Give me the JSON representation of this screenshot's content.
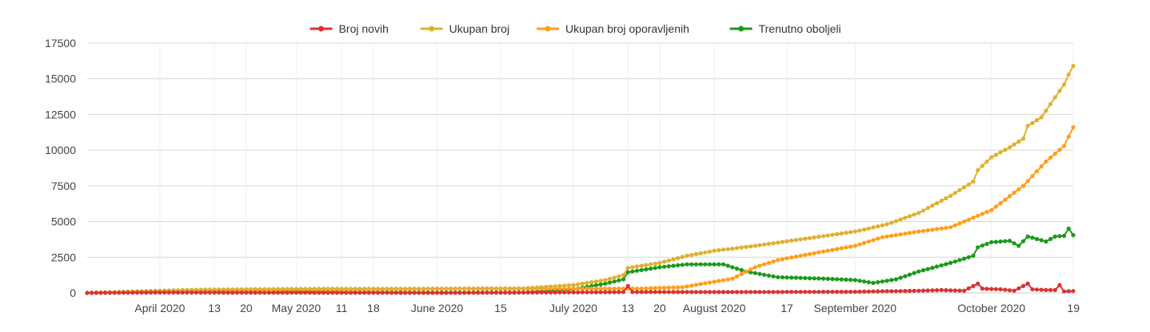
{
  "chart_data": {
    "type": "line",
    "title": "",
    "xlabel": "",
    "ylabel": "",
    "x_range": [
      "2020-03-16",
      "2020-10-19"
    ],
    "ylim": [
      0,
      17500
    ],
    "y_ticks": [
      0,
      2500,
      5000,
      7500,
      10000,
      12500,
      15000,
      17500
    ],
    "y_tick_labels": [
      "0",
      "2500",
      "5000",
      "7500",
      "10000",
      "12500",
      "15000",
      "17500"
    ],
    "x_ticks": [
      {
        "date": "2020-04-01",
        "label": "April 2020"
      },
      {
        "date": "2020-04-13",
        "label": "13"
      },
      {
        "date": "2020-04-20",
        "label": "20"
      },
      {
        "date": "2020-05-01",
        "label": "May 2020"
      },
      {
        "date": "2020-05-11",
        "label": "11"
      },
      {
        "date": "2020-05-18",
        "label": "18"
      },
      {
        "date": "2020-06-01",
        "label": "June 2020"
      },
      {
        "date": "2020-06-15",
        "label": "15"
      },
      {
        "date": "2020-07-01",
        "label": "July 2020"
      },
      {
        "date": "2020-07-13",
        "label": "13"
      },
      {
        "date": "2020-07-20",
        "label": "20"
      },
      {
        "date": "2020-08-01",
        "label": "August 2020"
      },
      {
        "date": "2020-08-17",
        "label": "17"
      },
      {
        "date": "2020-09-01",
        "label": "September 2020"
      },
      {
        "date": "2020-10-01",
        "label": "October 2020"
      },
      {
        "date": "2020-10-19",
        "label": "19"
      }
    ],
    "grid": true,
    "legend_position": "top-center",
    "series": [
      {
        "name": "Broj novih",
        "color": "#dc3232",
        "points": [
          [
            "2020-03-16",
            0
          ],
          [
            "2020-04-01",
            30
          ],
          [
            "2020-04-15",
            25
          ],
          [
            "2020-05-01",
            15
          ],
          [
            "2020-06-01",
            5
          ],
          [
            "2020-07-01",
            40
          ],
          [
            "2020-07-12",
            60
          ],
          [
            "2020-07-13",
            480
          ],
          [
            "2020-07-14",
            60
          ],
          [
            "2020-08-01",
            60
          ],
          [
            "2020-09-01",
            80
          ],
          [
            "2020-09-15",
            150
          ],
          [
            "2020-09-20",
            200
          ],
          [
            "2020-09-25",
            150
          ],
          [
            "2020-09-28",
            650
          ],
          [
            "2020-09-29",
            300
          ],
          [
            "2020-10-03",
            250
          ],
          [
            "2020-10-06",
            150
          ],
          [
            "2020-10-09",
            650
          ],
          [
            "2020-10-10",
            250
          ],
          [
            "2020-10-13",
            200
          ],
          [
            "2020-10-15",
            200
          ],
          [
            "2020-10-16",
            550
          ],
          [
            "2020-10-17",
            100
          ],
          [
            "2020-10-19",
            130
          ]
        ]
      },
      {
        "name": "Ukupan broj",
        "color": "#e0b030",
        "points": [
          [
            "2020-03-16",
            0
          ],
          [
            "2020-04-01",
            150
          ],
          [
            "2020-04-10",
            220
          ],
          [
            "2020-04-20",
            250
          ],
          [
            "2020-05-01",
            280
          ],
          [
            "2020-06-01",
            300
          ],
          [
            "2020-06-20",
            320
          ],
          [
            "2020-07-01",
            550
          ],
          [
            "2020-07-08",
            900
          ],
          [
            "2020-07-12",
            1250
          ],
          [
            "2020-07-13",
            1750
          ],
          [
            "2020-07-20",
            2100
          ],
          [
            "2020-07-26",
            2600
          ],
          [
            "2020-08-01",
            2950
          ],
          [
            "2020-08-10",
            3300
          ],
          [
            "2020-08-20",
            3750
          ],
          [
            "2020-09-01",
            4300
          ],
          [
            "2020-09-08",
            4800
          ],
          [
            "2020-09-15",
            5600
          ],
          [
            "2020-09-22",
            6800
          ],
          [
            "2020-09-27",
            7800
          ],
          [
            "2020-09-28",
            8600
          ],
          [
            "2020-10-01",
            9500
          ],
          [
            "2020-10-05",
            10200
          ],
          [
            "2020-10-08",
            10800
          ],
          [
            "2020-10-09",
            11700
          ],
          [
            "2020-10-12",
            12300
          ],
          [
            "2020-10-15",
            13700
          ],
          [
            "2020-10-17",
            14600
          ],
          [
            "2020-10-18",
            15300
          ],
          [
            "2020-10-19",
            15900
          ]
        ]
      },
      {
        "name": "Ukupan broj oporavljenih",
        "color": "#ff9f1a",
        "points": [
          [
            "2020-03-16",
            0
          ],
          [
            "2020-04-01",
            50
          ],
          [
            "2020-05-01",
            200
          ],
          [
            "2020-06-01",
            280
          ],
          [
            "2020-07-01",
            300
          ],
          [
            "2020-07-15",
            300
          ],
          [
            "2020-07-25",
            400
          ],
          [
            "2020-08-05",
            1000
          ],
          [
            "2020-08-10",
            1800
          ],
          [
            "2020-08-15",
            2300
          ],
          [
            "2020-08-25",
            2900
          ],
          [
            "2020-09-01",
            3300
          ],
          [
            "2020-09-07",
            3900
          ],
          [
            "2020-09-15",
            4300
          ],
          [
            "2020-09-22",
            4600
          ],
          [
            "2020-10-01",
            5800
          ],
          [
            "2020-10-08",
            7500
          ],
          [
            "2020-10-13",
            9200
          ],
          [
            "2020-10-17",
            10300
          ],
          [
            "2020-10-19",
            11600
          ]
        ]
      },
      {
        "name": "Trenutno oboljeli",
        "color": "#1a9a1a",
        "points": [
          [
            "2020-03-16",
            0
          ],
          [
            "2020-04-01",
            150
          ],
          [
            "2020-04-10",
            220
          ],
          [
            "2020-04-20",
            230
          ],
          [
            "2020-05-01",
            100
          ],
          [
            "2020-05-15",
            40
          ],
          [
            "2020-06-01",
            20
          ],
          [
            "2020-06-20",
            30
          ],
          [
            "2020-07-01",
            250
          ],
          [
            "2020-07-08",
            650
          ],
          [
            "2020-07-12",
            950
          ],
          [
            "2020-07-13",
            1450
          ],
          [
            "2020-07-20",
            1800
          ],
          [
            "2020-07-26",
            2000
          ],
          [
            "2020-08-03",
            2000
          ],
          [
            "2020-08-08",
            1500
          ],
          [
            "2020-08-15",
            1100
          ],
          [
            "2020-08-25",
            1000
          ],
          [
            "2020-09-01",
            900
          ],
          [
            "2020-09-05",
            700
          ],
          [
            "2020-09-10",
            950
          ],
          [
            "2020-09-15",
            1500
          ],
          [
            "2020-09-22",
            2100
          ],
          [
            "2020-09-27",
            2600
          ],
          [
            "2020-09-28",
            3200
          ],
          [
            "2020-10-01",
            3550
          ],
          [
            "2020-10-05",
            3650
          ],
          [
            "2020-10-07",
            3300
          ],
          [
            "2020-10-09",
            3950
          ],
          [
            "2020-10-13",
            3600
          ],
          [
            "2020-10-15",
            3950
          ],
          [
            "2020-10-17",
            4000
          ],
          [
            "2020-10-18",
            4500
          ],
          [
            "2020-10-19",
            4050
          ]
        ]
      }
    ]
  }
}
